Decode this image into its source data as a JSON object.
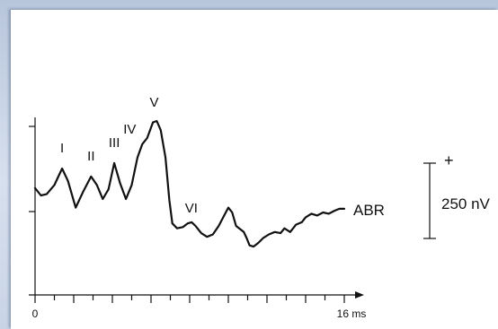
{
  "chart_data": {
    "type": "line",
    "title": "",
    "xlabel": "",
    "ylabel": "",
    "x_unit": "ms",
    "xlim": [
      0,
      16
    ],
    "x_tick_count": 16,
    "x_tick_labels": [
      {
        "x": 0,
        "text": "0"
      },
      {
        "x": 16,
        "text": "16 ms"
      }
    ],
    "grid": false,
    "series": [
      {
        "name": "ABR",
        "points": [
          [
            0.0,
            -0.1
          ],
          [
            0.3,
            -0.22
          ],
          [
            0.6,
            -0.2
          ],
          [
            1.0,
            -0.05
          ],
          [
            1.4,
            0.22
          ],
          [
            1.7,
            0.02
          ],
          [
            2.1,
            -0.42
          ],
          [
            2.5,
            -0.15
          ],
          [
            2.9,
            0.09
          ],
          [
            3.2,
            -0.05
          ],
          [
            3.5,
            -0.28
          ],
          [
            3.8,
            -0.12
          ],
          [
            4.1,
            0.31
          ],
          [
            4.4,
            -0.02
          ],
          [
            4.7,
            -0.28
          ],
          [
            5.0,
            -0.05
          ],
          [
            5.3,
            0.4
          ],
          [
            5.55,
            0.62
          ],
          [
            5.8,
            0.72
          ],
          [
            6.1,
            0.98
          ],
          [
            6.3,
            1.0
          ],
          [
            6.5,
            0.85
          ],
          [
            6.75,
            0.4
          ],
          [
            6.95,
            -0.3
          ],
          [
            7.1,
            -0.68
          ],
          [
            7.35,
            -0.76
          ],
          [
            7.65,
            -0.74
          ],
          [
            7.9,
            -0.68
          ],
          [
            8.1,
            -0.66
          ],
          [
            8.3,
            -0.72
          ],
          [
            8.6,
            -0.84
          ],
          [
            8.9,
            -0.9
          ],
          [
            9.2,
            -0.86
          ],
          [
            9.5,
            -0.72
          ],
          [
            9.8,
            -0.54
          ],
          [
            10.0,
            -0.42
          ],
          [
            10.2,
            -0.5
          ],
          [
            10.4,
            -0.72
          ],
          [
            10.6,
            -0.77
          ],
          [
            10.8,
            -0.82
          ],
          [
            10.95,
            -0.92
          ],
          [
            11.1,
            -1.04
          ],
          [
            11.3,
            -1.06
          ],
          [
            11.55,
            -1.0
          ],
          [
            11.8,
            -0.92
          ],
          [
            12.1,
            -0.86
          ],
          [
            12.4,
            -0.82
          ],
          [
            12.7,
            -0.84
          ],
          [
            12.9,
            -0.76
          ],
          [
            13.2,
            -0.82
          ],
          [
            13.5,
            -0.7
          ],
          [
            13.8,
            -0.66
          ],
          [
            14.0,
            -0.58
          ],
          [
            14.3,
            -0.52
          ],
          [
            14.6,
            -0.55
          ],
          [
            14.9,
            -0.5
          ],
          [
            15.2,
            -0.52
          ],
          [
            15.5,
            -0.47
          ],
          [
            15.75,
            -0.44
          ],
          [
            16.0,
            -0.44
          ]
        ]
      }
    ],
    "peaks": [
      {
        "label": "I",
        "x": 1.4,
        "y": 0.22
      },
      {
        "label": "II",
        "x": 2.9,
        "y": 0.09
      },
      {
        "label": "III",
        "x": 4.1,
        "y": 0.31
      },
      {
        "label": "IV",
        "x": 5.55,
        "y": 0.62
      },
      {
        "label": "V",
        "x": 6.3,
        "y": 1.0
      },
      {
        "label": "VI",
        "x": 7.9,
        "y": -0.68
      }
    ],
    "series_label": "ABR",
    "scale_bar": {
      "sign": "+",
      "label": "250 nV"
    },
    "colors": {
      "trace": "#111111",
      "background": "#ffffff"
    }
  }
}
